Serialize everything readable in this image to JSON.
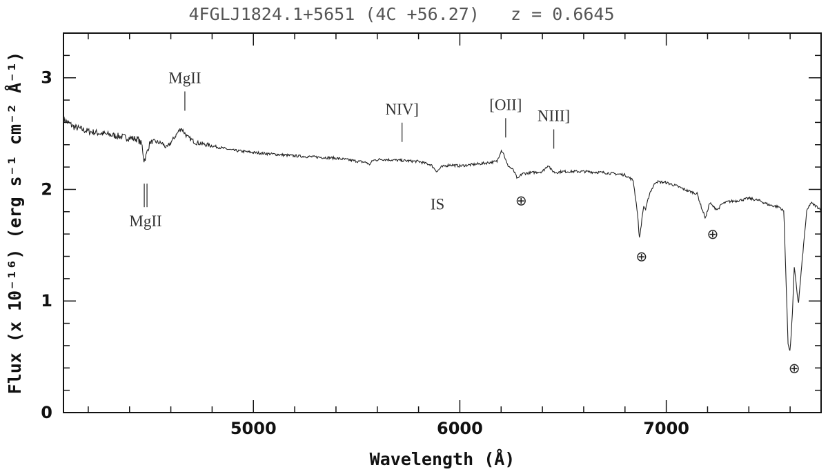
{
  "chart_data": {
    "type": "line",
    "title": "4FGLJ1824.1+5651 (4C +56.27)   z = 0.6645",
    "xlabel": "Wavelength (Å)",
    "ylabel": "Flux (x 10⁻¹⁶) (erg s⁻¹ cm⁻² Å⁻¹)",
    "xlim": [
      4080,
      7750
    ],
    "ylim": [
      0,
      3.4
    ],
    "x_ticks": [
      5000,
      6000,
      7000
    ],
    "y_ticks": [
      0,
      1,
      2,
      3
    ],
    "grid": false,
    "series": [
      {
        "name": "",
        "x": [
          4080,
          4130,
          4200,
          4300,
          4400,
          4440,
          4460,
          4470,
          4480,
          4490,
          4500,
          4520,
          4560,
          4580,
          4600,
          4630,
          4650,
          4680,
          4720,
          4800,
          4900,
          5000,
          5200,
          5400,
          5550,
          5560,
          5580,
          5620,
          5700,
          5800,
          5860,
          5890,
          5910,
          5950,
          6000,
          6100,
          6180,
          6200,
          6210,
          6230,
          6260,
          6280,
          6300,
          6350,
          6400,
          6430,
          6440,
          6460,
          6500,
          6600,
          6700,
          6800,
          6840,
          6860,
          6870,
          6880,
          6890,
          6900,
          6920,
          6950,
          7000,
          7050,
          7100,
          7150,
          7170,
          7190,
          7200,
          7210,
          7230,
          7250,
          7270,
          7300,
          7350,
          7400,
          7450,
          7500,
          7550,
          7570,
          7580,
          7590,
          7600,
          7610,
          7620,
          7640,
          7660,
          7680,
          7700,
          7750
        ],
        "y": [
          2.63,
          2.56,
          2.52,
          2.49,
          2.46,
          2.45,
          2.4,
          2.26,
          2.3,
          2.37,
          2.42,
          2.43,
          2.41,
          2.37,
          2.42,
          2.5,
          2.55,
          2.47,
          2.42,
          2.39,
          2.35,
          2.33,
          2.3,
          2.28,
          2.24,
          2.22,
          2.26,
          2.27,
          2.26,
          2.25,
          2.22,
          2.16,
          2.2,
          2.22,
          2.21,
          2.23,
          2.25,
          2.35,
          2.33,
          2.22,
          2.17,
          2.09,
          2.14,
          2.15,
          2.16,
          2.22,
          2.18,
          2.15,
          2.16,
          2.16,
          2.15,
          2.13,
          2.08,
          1.8,
          1.56,
          1.7,
          1.85,
          1.82,
          1.97,
          2.07,
          2.06,
          2.03,
          1.99,
          1.96,
          1.84,
          1.74,
          1.81,
          1.88,
          1.84,
          1.82,
          1.87,
          1.89,
          1.9,
          1.92,
          1.9,
          1.86,
          1.84,
          1.8,
          1.2,
          0.62,
          0.55,
          0.85,
          1.3,
          0.97,
          1.4,
          1.8,
          1.88,
          1.82
        ]
      }
    ],
    "annotations": [
      {
        "label": "MgII",
        "x": 4668,
        "y": 2.68,
        "side": "above"
      },
      {
        "label": "MgII",
        "x": 4478,
        "y": 2.15,
        "side": "below",
        "double_tick": true
      },
      {
        "label": "NIV]",
        "x": 5720,
        "y": 2.4,
        "side": "above"
      },
      {
        "label": "[OII]",
        "x": 6222,
        "y": 2.44,
        "side": "above"
      },
      {
        "label": "NIII]",
        "x": 6455,
        "y": 2.34,
        "side": "above"
      },
      {
        "label": "IS",
        "x": 5892,
        "y": 1.87,
        "side": "text"
      }
    ],
    "telluric_markers": [
      {
        "symbol": "⊕",
        "x": 6297,
        "y": 1.9
      },
      {
        "symbol": "⊕",
        "x": 6880,
        "y": 1.4
      },
      {
        "symbol": "⊕",
        "x": 7225,
        "y": 1.6
      },
      {
        "symbol": "⊕",
        "x": 7620,
        "y": 0.4
      }
    ]
  }
}
